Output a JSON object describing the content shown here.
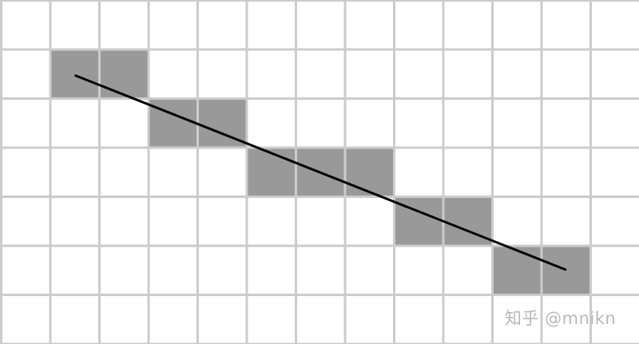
{
  "grid": {
    "columns": 13,
    "rows": 7,
    "filled_cells": [
      {
        "col": 1,
        "row": 1
      },
      {
        "col": 2,
        "row": 1
      },
      {
        "col": 3,
        "row": 2
      },
      {
        "col": 4,
        "row": 2
      },
      {
        "col": 5,
        "row": 3
      },
      {
        "col": 6,
        "row": 3
      },
      {
        "col": 7,
        "row": 3
      },
      {
        "col": 8,
        "row": 4
      },
      {
        "col": 9,
        "row": 4
      },
      {
        "col": 10,
        "row": 5
      },
      {
        "col": 11,
        "row": 5
      }
    ],
    "line": {
      "from": {
        "col": 1.5,
        "row": 1.5
      },
      "to": {
        "col": 11.5,
        "row": 5.5
      }
    }
  },
  "colors": {
    "grid_line": "#cccccc",
    "cell_fill": "#999999",
    "segment": "#000000",
    "background": "#ffffff"
  },
  "watermark": {
    "text": "知乎 @mnikn"
  }
}
